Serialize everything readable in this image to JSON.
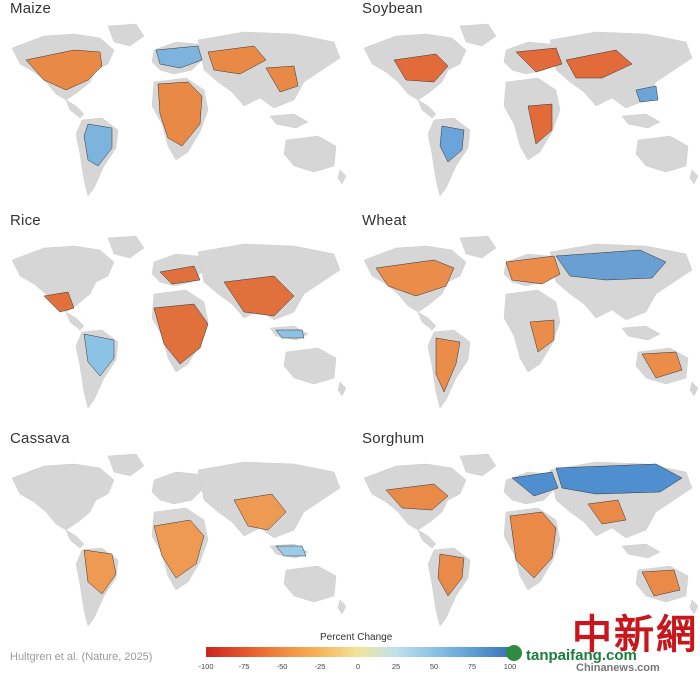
{
  "panels": [
    {
      "name": "Maize",
      "tint": "#e88a45",
      "cool": "#7cb4de"
    },
    {
      "name": "Soybean",
      "tint": "#e36b3a",
      "cool": "#6aa4d8"
    },
    {
      "name": "Rice",
      "tint": "#e0713c",
      "cool": "#8cc2e4"
    },
    {
      "name": "Wheat",
      "tint": "#ea8c4a",
      "cool": "#6a9fd4"
    },
    {
      "name": "Cassava",
      "tint": "#ef9a52",
      "cool": "#9ccbe8"
    },
    {
      "name": "Sorghum",
      "tint": "#ea8a48",
      "cool": "#4f8fcf"
    }
  ],
  "legend": {
    "title": "Percent Change",
    "ticks": [
      "-100",
      "-75",
      "-50",
      "-25",
      "0",
      "25",
      "50",
      "75",
      "100"
    ],
    "colors": [
      "#c8261e",
      "#e3552e",
      "#f08a3e",
      "#f7b559",
      "#f2e49a",
      "#bfe0ec",
      "#8cc2e4",
      "#5d9fd6",
      "#3872b8"
    ]
  },
  "citation": "Hultgren et al. (Nature, 2025)",
  "watermark": {
    "chinese": "中新網",
    "site": "tanpaifang.com",
    "sub": "Chinanews.com"
  }
}
